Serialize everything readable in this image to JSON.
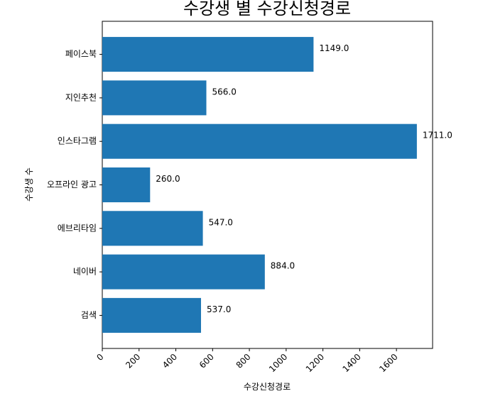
{
  "chart_data": {
    "type": "barh",
    "title": "수강생 별 수강신청경로",
    "xlabel": "수강신청경로",
    "ylabel": "수강생 수",
    "categories": [
      "검색",
      "네이버",
      "에브리타임",
      "오프라인 광고",
      "인스타그램",
      "지인추천",
      "페이스북"
    ],
    "values": [
      537,
      884,
      547,
      260,
      1711,
      566,
      1149
    ],
    "value_labels": [
      "537.0",
      "884.0",
      "547.0",
      "260.0",
      "1711.0",
      "566.0",
      "1149.0"
    ],
    "color": "#1f77b4",
    "xlim": [
      0,
      1796.55
    ],
    "xticks": [
      0,
      200,
      400,
      600,
      800,
      1000,
      1200,
      1400,
      1600
    ]
  }
}
